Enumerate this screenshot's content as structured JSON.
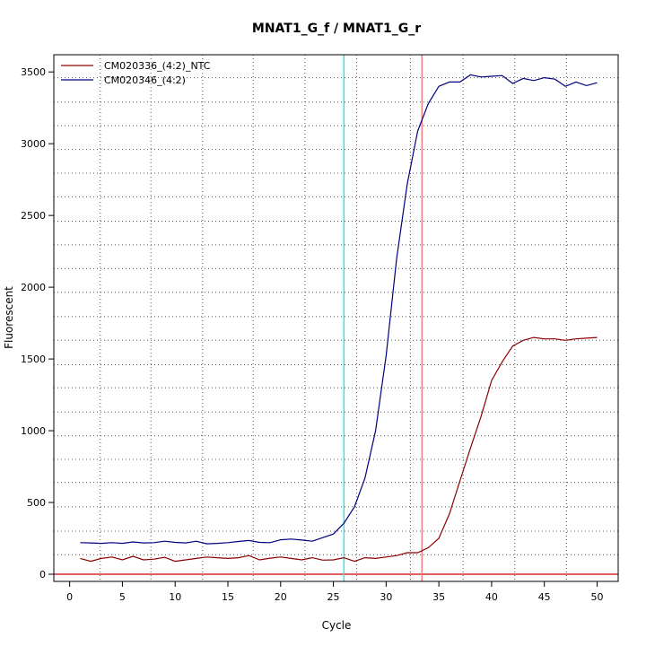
{
  "chart_data": {
    "type": "line",
    "title": "MNAT1_G_f / MNAT1_G_r",
    "xlabel": "Cycle",
    "ylabel": "Fluorescent",
    "xlim": [
      -1.5,
      52
    ],
    "ylim": [
      -50,
      3620
    ],
    "x_ticks": [
      0,
      5,
      10,
      15,
      20,
      25,
      30,
      35,
      40,
      45,
      50
    ],
    "y_ticks": [
      0,
      500,
      1000,
      1500,
      2000,
      2500,
      3000,
      3500
    ],
    "grid": true,
    "grid_x": [
      2.9,
      7.7,
      12.6,
      17.4,
      22.3,
      27.2,
      32.3,
      37.3,
      42.2,
      47.1
    ],
    "grid_y": [
      135,
      300,
      470,
      640,
      800,
      965,
      1130,
      1300,
      1460,
      1630,
      1795,
      1965,
      2130,
      2295,
      2460,
      2630,
      2795,
      2960,
      3125,
      3290,
      3460
    ],
    "legend_position": "top-left",
    "baseline": {
      "y": 0,
      "color": "#cc0000"
    },
    "cycle_markers": [
      {
        "x": 26,
        "color": "#33e6e6"
      },
      {
        "x": 33.4,
        "color": "#f08080"
      }
    ],
    "series": [
      {
        "name": "CM020336_(4:2)_NTC",
        "color": "#8b0000",
        "x": [
          1,
          2,
          3,
          4,
          5,
          6,
          7,
          8,
          9,
          10,
          11,
          12,
          13,
          14,
          15,
          16,
          17,
          18,
          19,
          20,
          21,
          22,
          23,
          24,
          25,
          26,
          27,
          28,
          29,
          30,
          31,
          32,
          33,
          34,
          35,
          36,
          37,
          38,
          39,
          40,
          41,
          42,
          43,
          44,
          45,
          46,
          47,
          48,
          49,
          50
        ],
        "values": [
          110,
          90,
          110,
          120,
          100,
          125,
          100,
          105,
          118,
          90,
          100,
          110,
          120,
          115,
          110,
          115,
          130,
          100,
          112,
          120,
          110,
          100,
          115,
          98,
          100,
          115,
          90,
          115,
          110,
          120,
          130,
          150,
          150,
          185,
          250,
          420,
          650,
          880,
          1100,
          1350,
          1480,
          1590,
          1630,
          1650,
          1640,
          1640,
          1630,
          1640,
          1645,
          1650
        ]
      },
      {
        "name": "CM020346_(4:2)",
        "color": "#000080",
        "x": [
          1,
          2,
          3,
          4,
          5,
          6,
          7,
          8,
          9,
          10,
          11,
          12,
          13,
          14,
          15,
          16,
          17,
          18,
          19,
          20,
          21,
          22,
          23,
          24,
          25,
          26,
          27,
          28,
          29,
          30,
          31,
          32,
          33,
          34,
          35,
          36,
          37,
          38,
          39,
          40,
          41,
          42,
          43,
          44,
          45,
          46,
          47,
          48,
          49,
          50
        ],
        "values": [
          220,
          218,
          215,
          220,
          215,
          225,
          218,
          220,
          230,
          222,
          218,
          230,
          212,
          215,
          220,
          228,
          235,
          222,
          220,
          240,
          245,
          238,
          230,
          255,
          280,
          355,
          470,
          670,
          1000,
          1520,
          2200,
          2720,
          3090,
          3280,
          3400,
          3430,
          3430,
          3480,
          3465,
          3470,
          3475,
          3420,
          3455,
          3440,
          3460,
          3450,
          3400,
          3430,
          3405,
          3425
        ]
      }
    ]
  }
}
